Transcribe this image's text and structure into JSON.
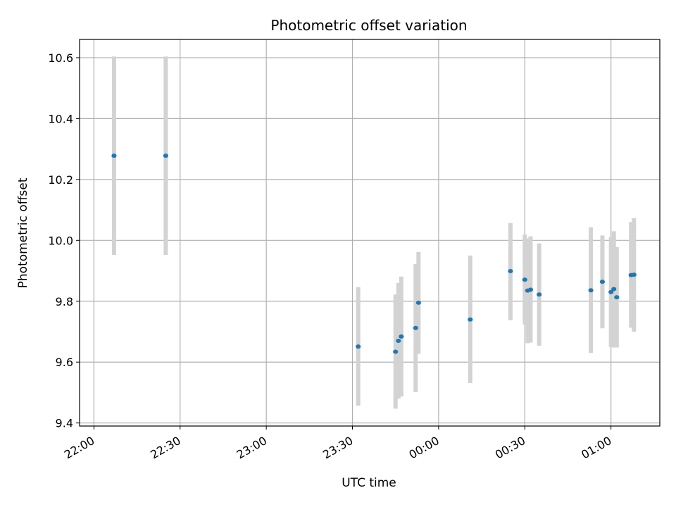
{
  "chart_data": {
    "type": "scatter",
    "title": "Photometric offset variation",
    "xlabel": "UTC time",
    "ylabel": "Photometric offset",
    "grid": true,
    "xlim": [
      "21:55",
      "01:17"
    ],
    "ylim": [
      9.39,
      10.66
    ],
    "x_ticks": [
      "22:00",
      "22:30",
      "23:00",
      "23:30",
      "00:00",
      "00:30",
      "01:00"
    ],
    "y_ticks": [
      "9.4",
      "9.6",
      "9.8",
      "10.0",
      "10.2",
      "10.4",
      "10.6"
    ],
    "colors": {
      "points": "#1f77b4",
      "errorbars": "#d3d3d3",
      "grid": "#b0b0b0"
    },
    "points": [
      {
        "t": "22:07",
        "y": 10.278,
        "lo": 9.952,
        "hi": 10.604
      },
      {
        "t": "22:25",
        "y": 10.278,
        "lo": 9.952,
        "hi": 10.604
      },
      {
        "t": "23:32",
        "y": 9.651,
        "lo": 9.457,
        "hi": 9.846
      },
      {
        "t": "23:45",
        "y": 9.634,
        "lo": 9.447,
        "hi": 9.822
      },
      {
        "t": "23:46",
        "y": 9.67,
        "lo": 9.48,
        "hi": 9.86
      },
      {
        "t": "23:47",
        "y": 9.684,
        "lo": 9.487,
        "hi": 9.881
      },
      {
        "t": "23:52",
        "y": 9.712,
        "lo": 9.501,
        "hi": 9.922
      },
      {
        "t": "23:53",
        "y": 9.795,
        "lo": 9.627,
        "hi": 9.962
      },
      {
        "t": "00:11",
        "y": 9.74,
        "lo": 9.531,
        "hi": 9.95
      },
      {
        "t": "00:25",
        "y": 9.899,
        "lo": 9.738,
        "hi": 10.057
      },
      {
        "t": "00:30",
        "y": 9.871,
        "lo": 9.724,
        "hi": 10.019
      },
      {
        "t": "00:31",
        "y": 9.835,
        "lo": 9.662,
        "hi": 10.006
      },
      {
        "t": "00:32",
        "y": 9.838,
        "lo": 9.664,
        "hi": 10.013
      },
      {
        "t": "00:35",
        "y": 9.822,
        "lo": 9.654,
        "hi": 9.99
      },
      {
        "t": "00:53",
        "y": 9.836,
        "lo": 9.63,
        "hi": 10.043
      },
      {
        "t": "00:57",
        "y": 9.864,
        "lo": 9.711,
        "hi": 10.016
      },
      {
        "t": "01:00",
        "y": 9.83,
        "lo": 9.65,
        "hi": 10.01
      },
      {
        "t": "01:01",
        "y": 9.84,
        "lo": 9.648,
        "hi": 10.03
      },
      {
        "t": "01:02",
        "y": 9.813,
        "lo": 9.648,
        "hi": 9.978
      },
      {
        "t": "01:07",
        "y": 9.886,
        "lo": 9.713,
        "hi": 10.06
      },
      {
        "t": "01:08",
        "y": 9.887,
        "lo": 9.7,
        "hi": 10.073
      }
    ]
  }
}
